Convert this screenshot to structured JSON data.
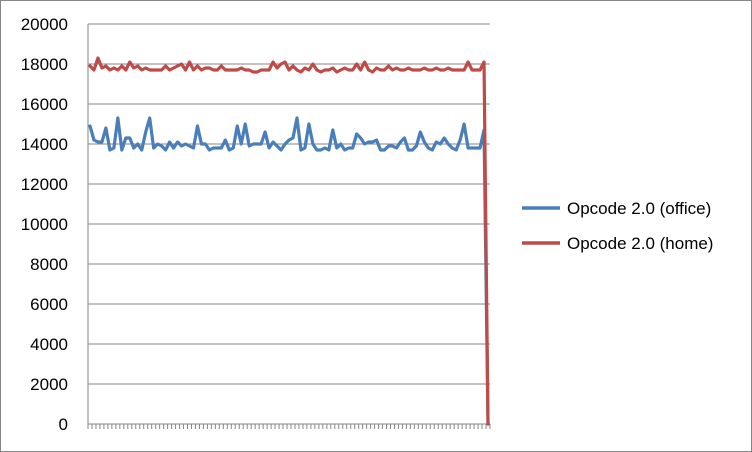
{
  "chart_data": {
    "type": "line",
    "title": "",
    "xlabel": "",
    "ylabel": "",
    "ylim": [
      0,
      20000
    ],
    "yticks": [
      0,
      2000,
      4000,
      6000,
      8000,
      10000,
      12000,
      14000,
      16000,
      18000,
      20000
    ],
    "ytick_labels": [
      "0",
      "2000",
      "4000",
      "6000",
      "8000",
      "10000",
      "12000",
      "14000",
      "16000",
      "18000",
      "20000"
    ],
    "grid": "horizontal",
    "legend_position": "right",
    "x_count": 101,
    "series": [
      {
        "name": "Opcode 2.0 (office)",
        "color": "#4a7ebb",
        "values": [
          14900,
          14200,
          14100,
          14100,
          14800,
          13700,
          13800,
          15300,
          13700,
          14300,
          14300,
          13800,
          14000,
          13700,
          14600,
          15300,
          13800,
          14000,
          13900,
          13700,
          14100,
          13800,
          14100,
          13900,
          14000,
          13900,
          13800,
          14900,
          14000,
          14000,
          13700,
          13800,
          13800,
          13800,
          14200,
          13700,
          13800,
          14900,
          14000,
          15000,
          13900,
          14000,
          14000,
          14000,
          14600,
          13800,
          14100,
          13900,
          13700,
          14000,
          14200,
          14300,
          15300,
          13700,
          13800,
          15000,
          14000,
          13700,
          13700,
          13800,
          13700,
          14700,
          13800,
          14000,
          13700,
          13800,
          13800,
          14500,
          14300,
          14000,
          14100,
          14100,
          14200,
          13700,
          13700,
          13900,
          13900,
          13800,
          14100,
          14300,
          13700,
          13700,
          13900,
          14600,
          14100,
          13800,
          13700,
          14100,
          14000,
          14300,
          14000,
          13800,
          13700,
          14200,
          15000,
          13800,
          13800,
          13800,
          13800,
          14700,
          0
        ],
        "last_value": 0
      },
      {
        "name": "Opcode 2.0 (home)",
        "color": "#be4b48",
        "values": [
          17900,
          17700,
          18300,
          17800,
          17900,
          17700,
          17800,
          17700,
          17900,
          17700,
          18100,
          17800,
          17900,
          17700,
          17800,
          17700,
          17700,
          17700,
          17700,
          17900,
          17700,
          17800,
          17900,
          18000,
          17700,
          18100,
          17700,
          17900,
          17700,
          17800,
          17800,
          17700,
          17700,
          17900,
          17700,
          17700,
          17700,
          17700,
          17800,
          17700,
          17700,
          17600,
          17600,
          17700,
          17700,
          17700,
          18100,
          17800,
          18000,
          18100,
          17700,
          17900,
          17700,
          17600,
          17800,
          17700,
          18000,
          17700,
          17600,
          17700,
          17700,
          17800,
          17600,
          17700,
          17800,
          17700,
          17700,
          18000,
          17700,
          18100,
          17700,
          17600,
          17800,
          17700,
          17700,
          17900,
          17700,
          17800,
          17700,
          17700,
          17800,
          17700,
          17700,
          17700,
          17800,
          17700,
          17700,
          17800,
          17700,
          17700,
          17800,
          17700,
          17700,
          17700,
          17700,
          18100,
          17700,
          17700,
          17700,
          18100,
          0
        ]
      }
    ]
  }
}
